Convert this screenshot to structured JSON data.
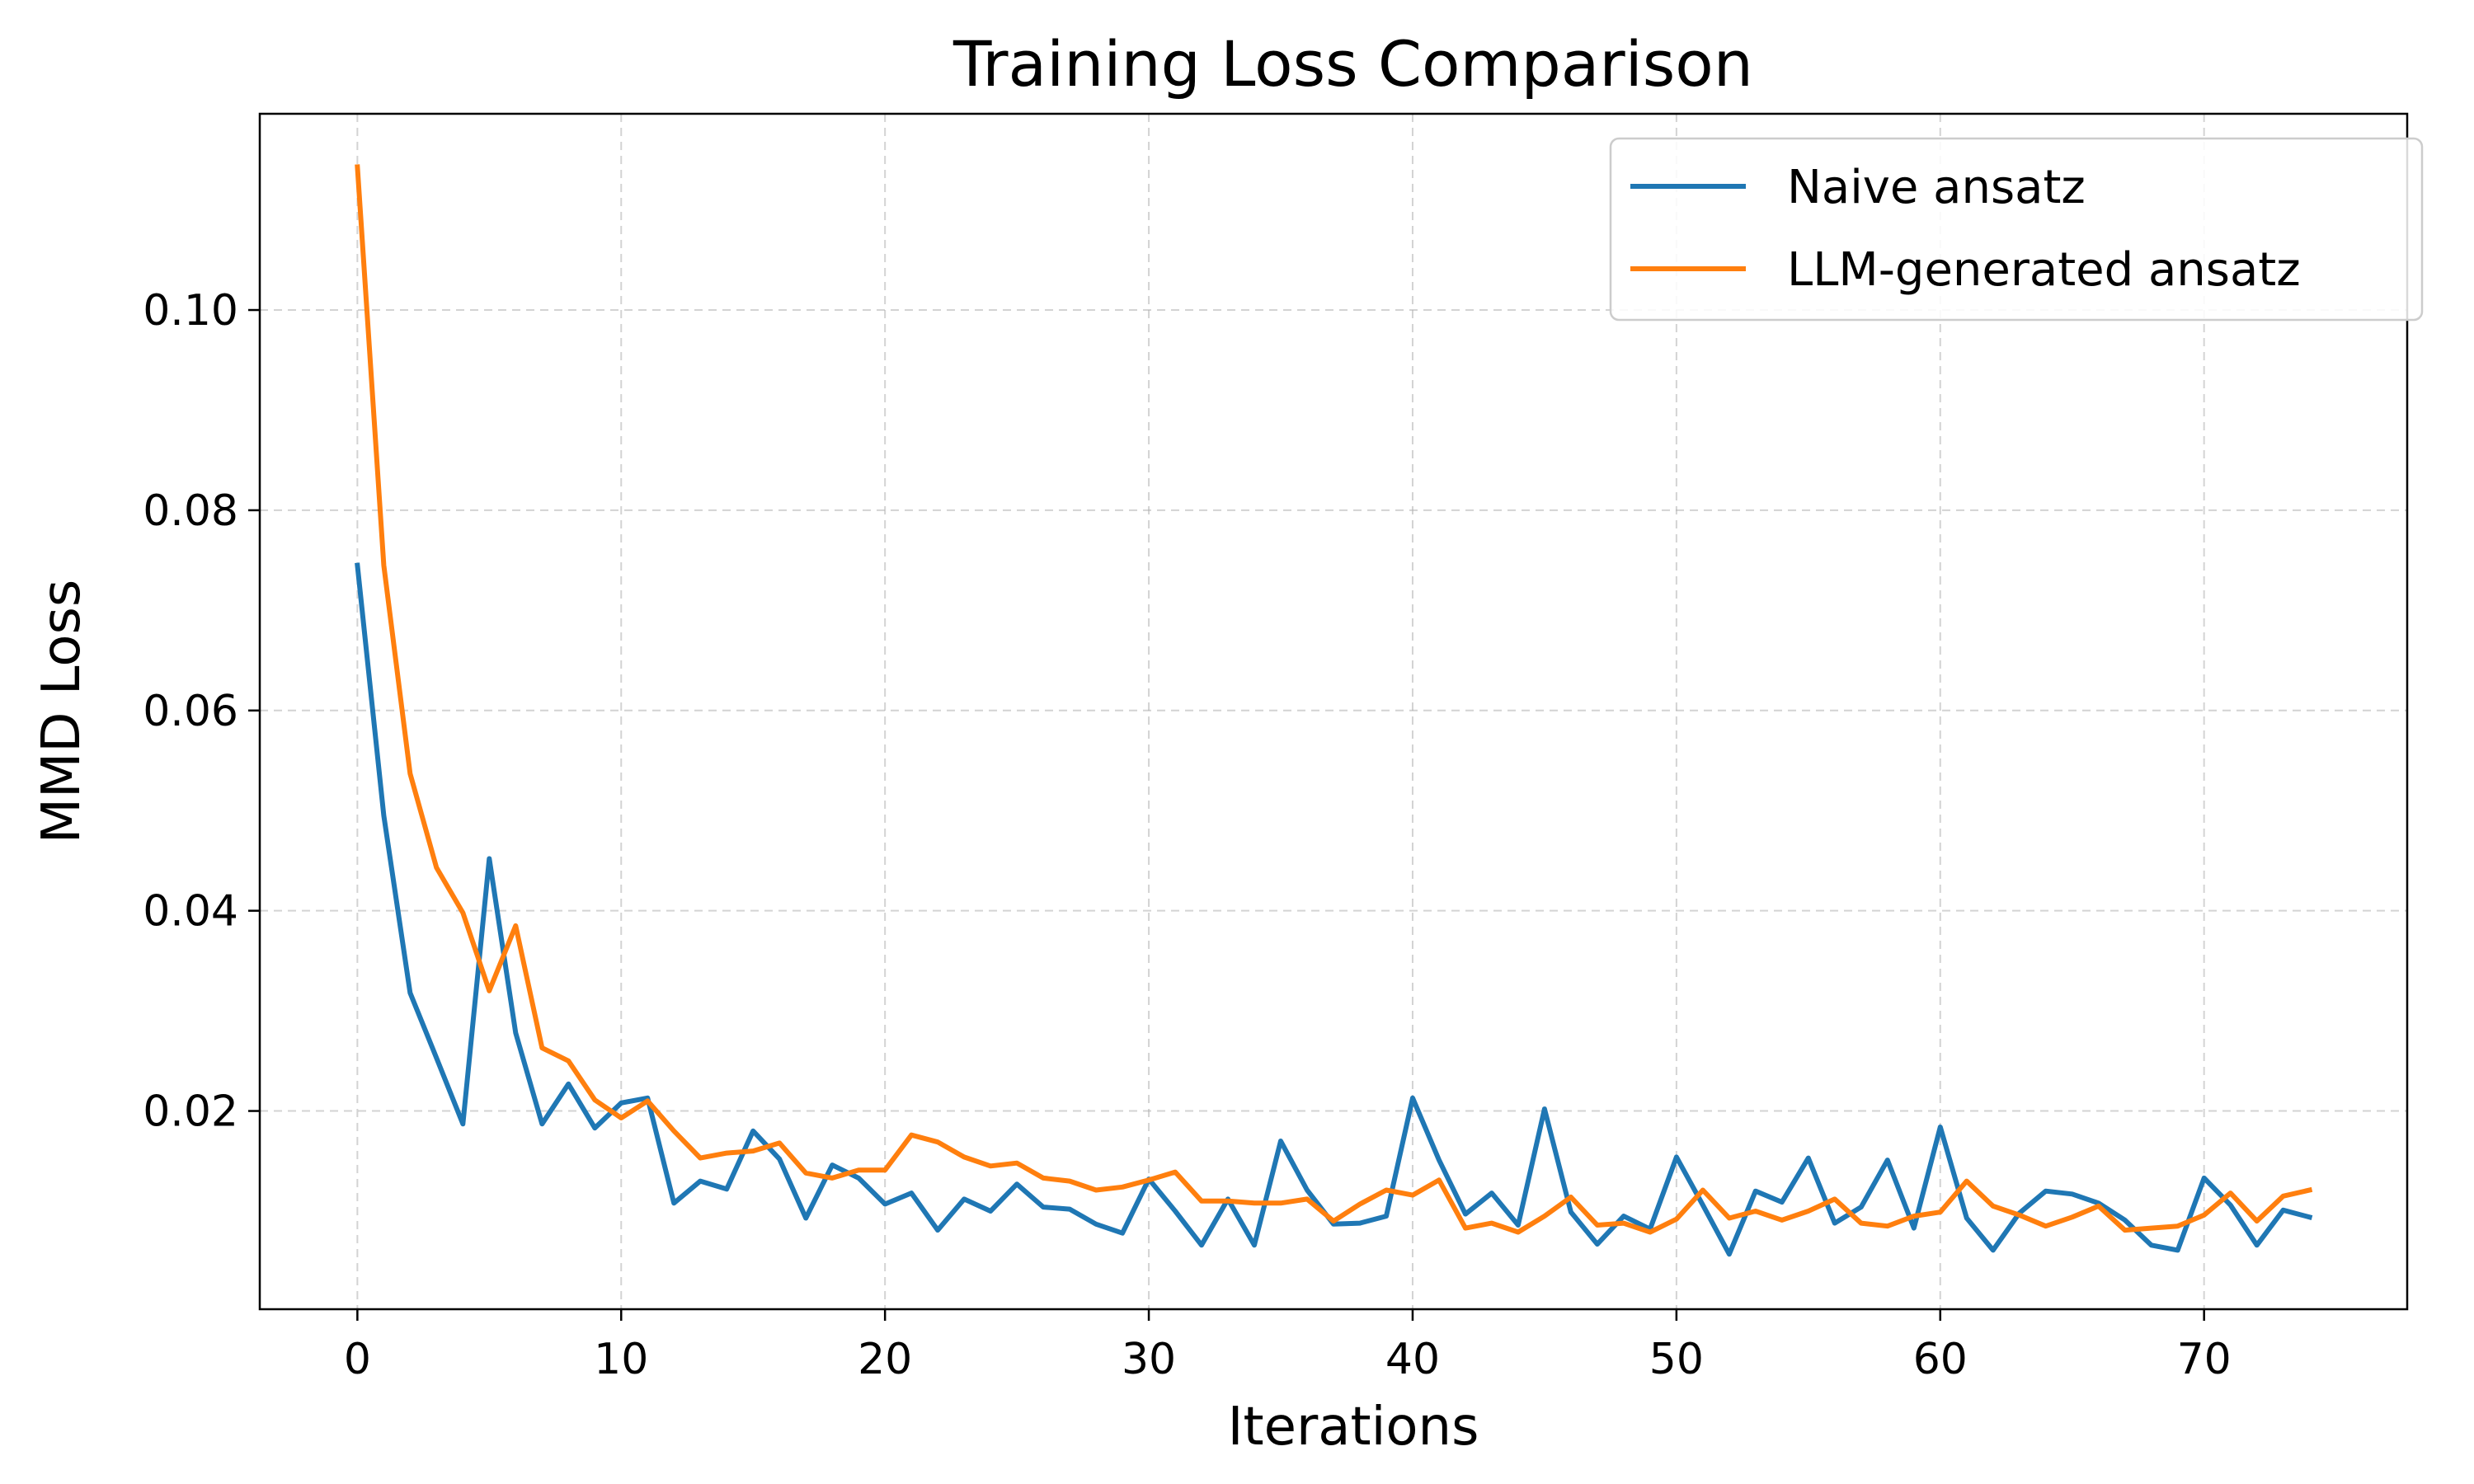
{
  "chart_data": {
    "type": "line",
    "title": "Training Loss Comparison",
    "xlabel": "Iterations",
    "ylabel": "MMD Loss",
    "xlim": [
      -3.7,
      77.7
    ],
    "ylim": [
      0.0002,
      0.1196
    ],
    "xticks": [
      0,
      10,
      20,
      30,
      40,
      50,
      60,
      70
    ],
    "yticks": [
      0.02,
      0.04,
      0.06,
      0.08,
      0.1
    ],
    "ytick_labels": [
      "0.02",
      "0.04",
      "0.06",
      "0.08",
      "0.10"
    ],
    "grid": true,
    "legend_position": "top-right",
    "series": [
      {
        "name": "Naive ansatz",
        "color": "#1f77b4",
        "x": [
          0,
          1,
          2,
          3,
          4,
          5,
          6,
          7,
          8,
          9,
          10,
          11,
          12,
          13,
          14,
          15,
          16,
          17,
          18,
          19,
          20,
          21,
          22,
          23,
          24,
          25,
          26,
          27,
          28,
          29,
          30,
          31,
          32,
          33,
          34,
          35,
          36,
          37,
          38,
          39,
          40,
          41,
          42,
          43,
          44,
          45,
          46,
          47,
          48,
          49,
          50,
          51,
          52,
          53,
          54,
          55,
          56,
          57,
          58,
          59,
          60,
          61,
          62,
          63,
          64,
          65,
          66,
          67,
          68,
          69,
          70,
          71,
          72,
          73,
          74
        ],
        "values": [
          0.0745,
          0.0495,
          0.0318,
          0.0253,
          0.0187,
          0.0452,
          0.0278,
          0.0187,
          0.0227,
          0.0183,
          0.0208,
          0.0213,
          0.0108,
          0.013,
          0.0122,
          0.018,
          0.0152,
          0.0093,
          0.0146,
          0.0133,
          0.0107,
          0.0118,
          0.0081,
          0.0112,
          0.01,
          0.0127,
          0.0104,
          0.0102,
          0.0087,
          0.0078,
          0.0132,
          0.01,
          0.0066,
          0.0112,
          0.0066,
          0.017,
          0.0121,
          0.0087,
          0.0088,
          0.0095,
          0.0213,
          0.0151,
          0.0097,
          0.0118,
          0.0086,
          0.0202,
          0.0099,
          0.0067,
          0.0095,
          0.0082,
          0.0154,
          0.0106,
          0.0057,
          0.012,
          0.0109,
          0.0153,
          0.0088,
          0.0104,
          0.0151,
          0.0083,
          0.0184,
          0.0093,
          0.0061,
          0.0098,
          0.012,
          0.0117,
          0.0108,
          0.0091,
          0.0066,
          0.0061,
          0.0133,
          0.0106,
          0.0066,
          0.0101,
          0.0094
        ]
      },
      {
        "name": "LLM-generated ansatz",
        "color": "#ff7f0e",
        "x": [
          0,
          1,
          2,
          3,
          4,
          5,
          6,
          7,
          8,
          9,
          10,
          11,
          12,
          13,
          14,
          15,
          16,
          17,
          18,
          19,
          20,
          21,
          22,
          23,
          24,
          25,
          26,
          27,
          28,
          29,
          30,
          31,
          32,
          33,
          34,
          35,
          36,
          37,
          38,
          39,
          40,
          41,
          42,
          43,
          44,
          45,
          46,
          47,
          48,
          49,
          50,
          51,
          52,
          53,
          54,
          55,
          56,
          57,
          58,
          59,
          60,
          61,
          62,
          63,
          64,
          65,
          66,
          67,
          68,
          69,
          70,
          71,
          72,
          73,
          74
        ],
        "values": [
          0.1143,
          0.0745,
          0.0537,
          0.0443,
          0.0398,
          0.032,
          0.0385,
          0.0263,
          0.025,
          0.0211,
          0.0193,
          0.021,
          0.018,
          0.0153,
          0.0158,
          0.016,
          0.0168,
          0.0138,
          0.0133,
          0.0141,
          0.0141,
          0.0176,
          0.0169,
          0.0154,
          0.0145,
          0.0148,
          0.0133,
          0.013,
          0.0121,
          0.0124,
          0.0131,
          0.0139,
          0.011,
          0.011,
          0.0108,
          0.0108,
          0.0112,
          0.009,
          0.0107,
          0.0121,
          0.0116,
          0.0131,
          0.0083,
          0.0088,
          0.0079,
          0.0095,
          0.0114,
          0.0086,
          0.0088,
          0.0079,
          0.0092,
          0.0121,
          0.0093,
          0.01,
          0.0091,
          0.01,
          0.0112,
          0.0088,
          0.0085,
          0.0095,
          0.0099,
          0.013,
          0.0105,
          0.0096,
          0.0085,
          0.0094,
          0.0105,
          0.0081,
          0.0083,
          0.0085,
          0.0096,
          0.0118,
          0.009,
          0.0115,
          0.0121
        ]
      }
    ]
  }
}
